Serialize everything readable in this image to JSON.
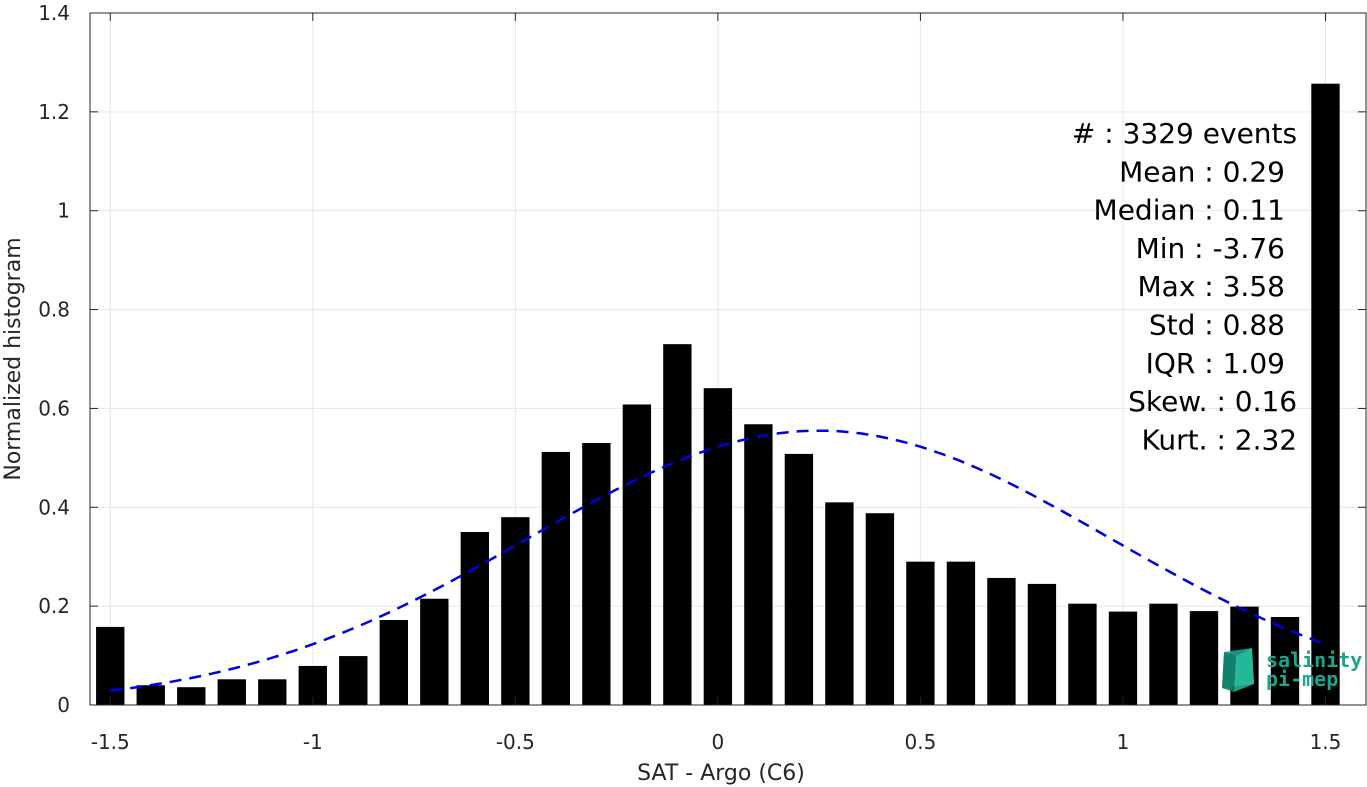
{
  "chart_data": {
    "type": "bar",
    "xlabel": "SAT - Argo (C6)",
    "ylabel": "Normalized histogram",
    "xlim": [
      -1.55,
      1.6
    ],
    "ylim": [
      0,
      1.4
    ],
    "grid": true,
    "xticks": [
      -1.5,
      -1,
      -0.5,
      0,
      0.5,
      1,
      1.5
    ],
    "xtick_labels": [
      "-1.5",
      "-1",
      "-0.5",
      "0",
      "0.5",
      "1",
      "1.5"
    ],
    "yticks": [
      0,
      0.2,
      0.4,
      0.6,
      0.8,
      1,
      1.2,
      1.4
    ],
    "ytick_labels": [
      "0",
      "0.2",
      "0.4",
      "0.6",
      "0.8",
      "1",
      "1.2",
      "1.4"
    ],
    "bar_color": "#000000",
    "bar_width": 0.07,
    "bins": [
      -1.5,
      -1.4,
      -1.3,
      -1.2,
      -1.1,
      -1.0,
      -0.9,
      -0.8,
      -0.7,
      -0.6,
      -0.5,
      -0.4,
      -0.3,
      -0.2,
      -0.1,
      0.0,
      0.1,
      0.2,
      0.3,
      0.4,
      0.5,
      0.6,
      0.7,
      0.8,
      0.9,
      1.0,
      1.1,
      1.2,
      1.3,
      1.4,
      1.5
    ],
    "values": [
      0.158,
      0.04,
      0.036,
      0.052,
      0.052,
      0.079,
      0.099,
      0.172,
      0.215,
      0.35,
      0.38,
      0.512,
      0.53,
      0.608,
      0.73,
      0.641,
      0.568,
      0.508,
      0.41,
      0.388,
      0.29,
      0.29,
      0.257,
      0.245,
      0.205,
      0.189,
      0.205,
      0.19,
      0.199,
      0.178,
      1.257
    ],
    "fit_curve": {
      "type": "gaussian",
      "mean": 0.25,
      "std": 0.72,
      "peak": 0.555,
      "x_range": [
        -1.5,
        1.5
      ],
      "color": "#0000e6",
      "style": "dashed"
    },
    "stats": [
      {
        "label": "#  : 3329 events",
        "x": 1.43
      },
      {
        "label": "Mean : 0.29",
        "x": 1.4
      },
      {
        "label": "Median : 0.11",
        "x": 1.4
      },
      {
        "label": "Min : -3.76",
        "x": 1.4
      },
      {
        "label": "Max : 3.58",
        "x": 1.4
      },
      {
        "label": "Std : 0.88",
        "x": 1.4
      },
      {
        "label": "IQR : 1.09",
        "x": 1.4
      },
      {
        "label": "Skew. : 0.16",
        "x": 1.43
      },
      {
        "label": "Kurt. : 2.32",
        "x": 1.43
      }
    ]
  },
  "watermark": {
    "line1": "salinity",
    "line2": "pi-mep",
    "color": "#1aa58c"
  }
}
